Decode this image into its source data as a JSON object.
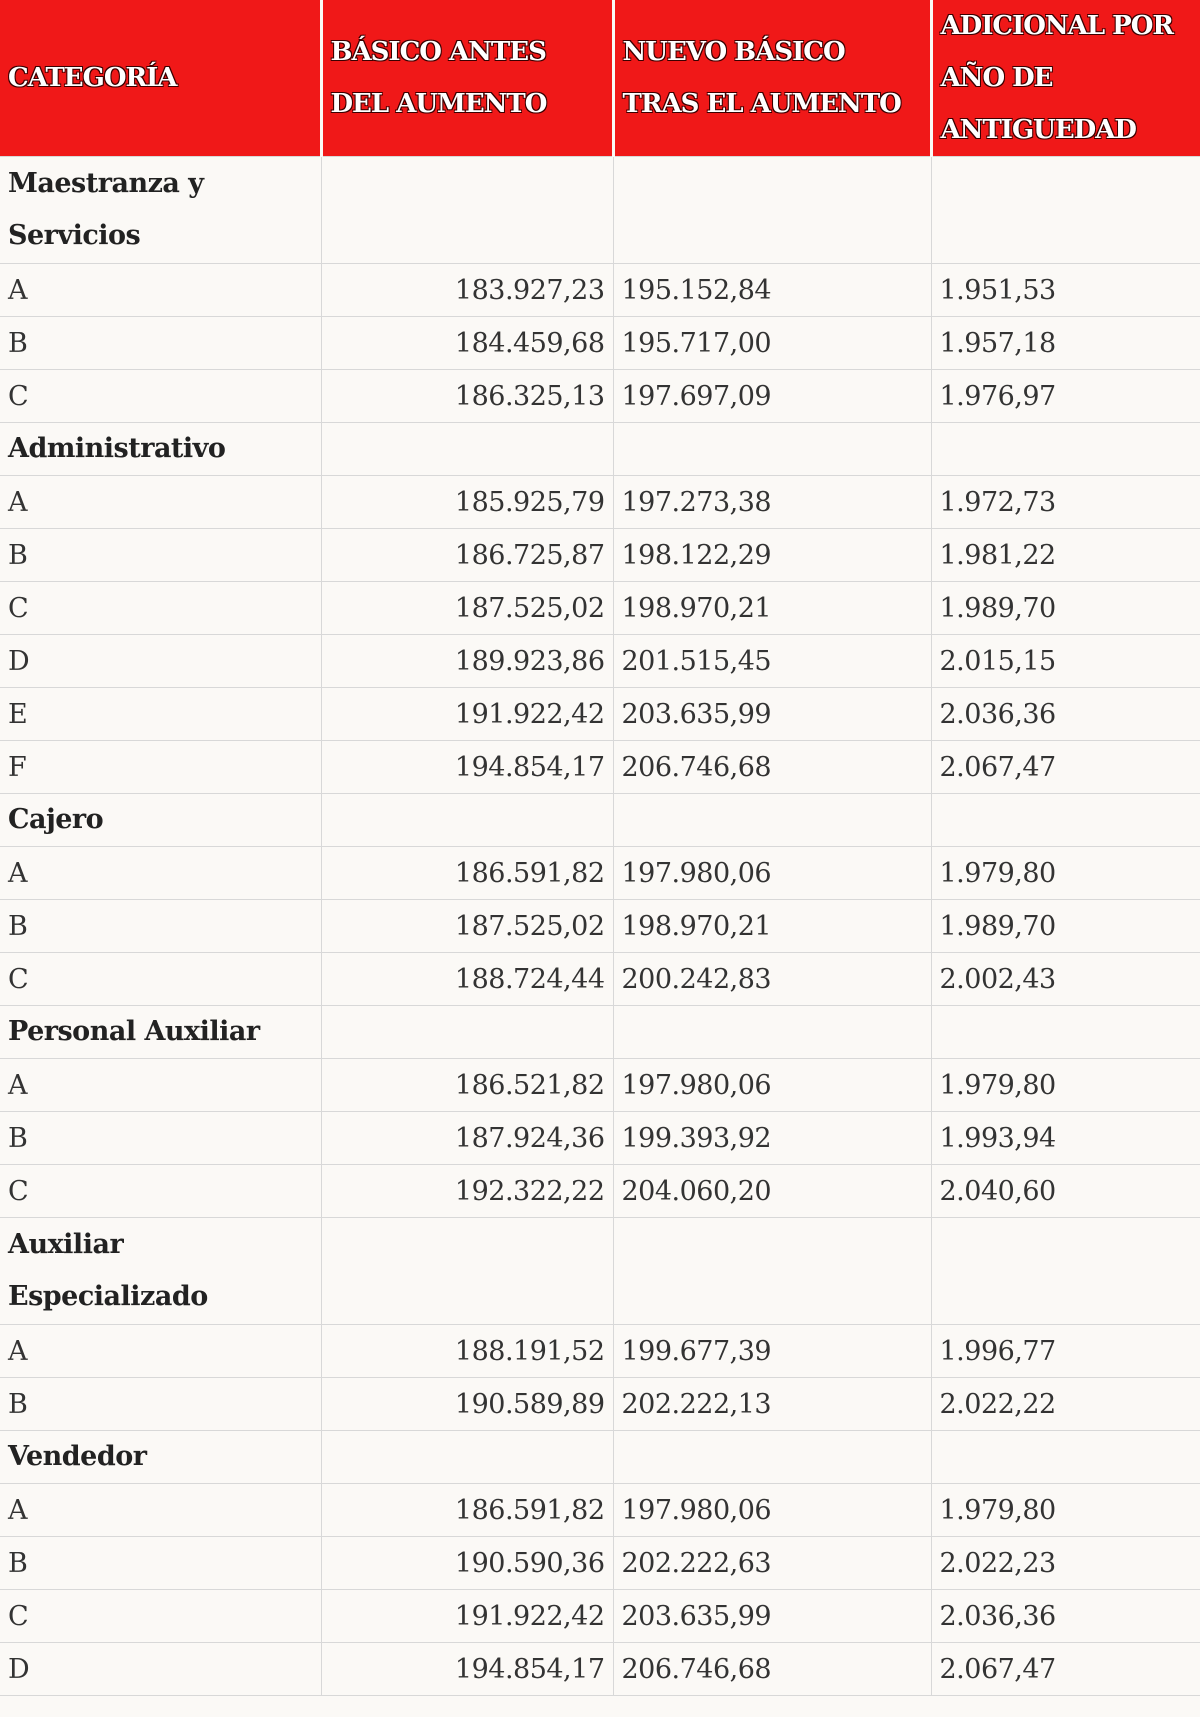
{
  "table": {
    "header": [
      "CATEGORÍA",
      "BÁSICO ANTES DEL AUMENTO",
      "NUEVO BÁSICO TRAS EL AUMENTO",
      "ADICIONAL POR AÑO DE ANTIGUEDAD"
    ],
    "rows": [
      [
        "Maestranza y Servicios"
      ],
      [
        "A",
        "183.927,23",
        "195.152,84",
        "1.951,53"
      ],
      [
        "B",
        "184.459,68",
        "195.717,00",
        "1.957,18"
      ],
      [
        "C",
        "186.325,13",
        "197.697,09",
        "1.976,97"
      ],
      [
        "Administrativo"
      ],
      [
        "A",
        "185.925,79",
        "197.273,38",
        "1.972,73"
      ],
      [
        "B",
        "186.725,87",
        "198.122,29",
        "1.981,22"
      ],
      [
        "C",
        "187.525,02",
        "198.970,21",
        "1.989,70"
      ],
      [
        "D",
        "189.923,86",
        "201.515,45",
        "2.015,15"
      ],
      [
        "E",
        "191.922,42",
        "203.635,99",
        "2.036,36"
      ],
      [
        "F",
        "194.854,17",
        "206.746,68",
        "2.067,47"
      ],
      [
        "Cajero"
      ],
      [
        "A",
        "186.591,82",
        "197.980,06",
        "1.979,80"
      ],
      [
        "B",
        "187.525,02",
        "198.970,21",
        "1.989,70"
      ],
      [
        "C",
        "188.724,44",
        "200.242,83",
        "2.002,43"
      ],
      [
        "Personal Auxiliar"
      ],
      [
        "A",
        "186.521,82",
        "197.980,06",
        "1.979,80"
      ],
      [
        "B",
        "187.924,36",
        "199.393,92",
        "1.993,94"
      ],
      [
        "C",
        "192.322,22",
        "204.060,20",
        "2.040,60"
      ],
      [
        "Auxiliar Especializado"
      ],
      [
        "A",
        "188.191,52",
        "199.677,39",
        "1.996,77"
      ],
      [
        "B",
        "190.589,89",
        "202.222,13",
        "2.022,22"
      ],
      [
        "Vendedor"
      ],
      [
        "A",
        "186.591,82",
        "197.980,06",
        "1.979,80"
      ],
      [
        "B",
        "190.590,36",
        "202.222,63",
        "2.022,23"
      ],
      [
        "C",
        "191.922,42",
        "203.635,99",
        "2.036,36"
      ],
      [
        "D",
        "194.854,17",
        "206.746,68",
        "2.067,47"
      ]
    ]
  }
}
